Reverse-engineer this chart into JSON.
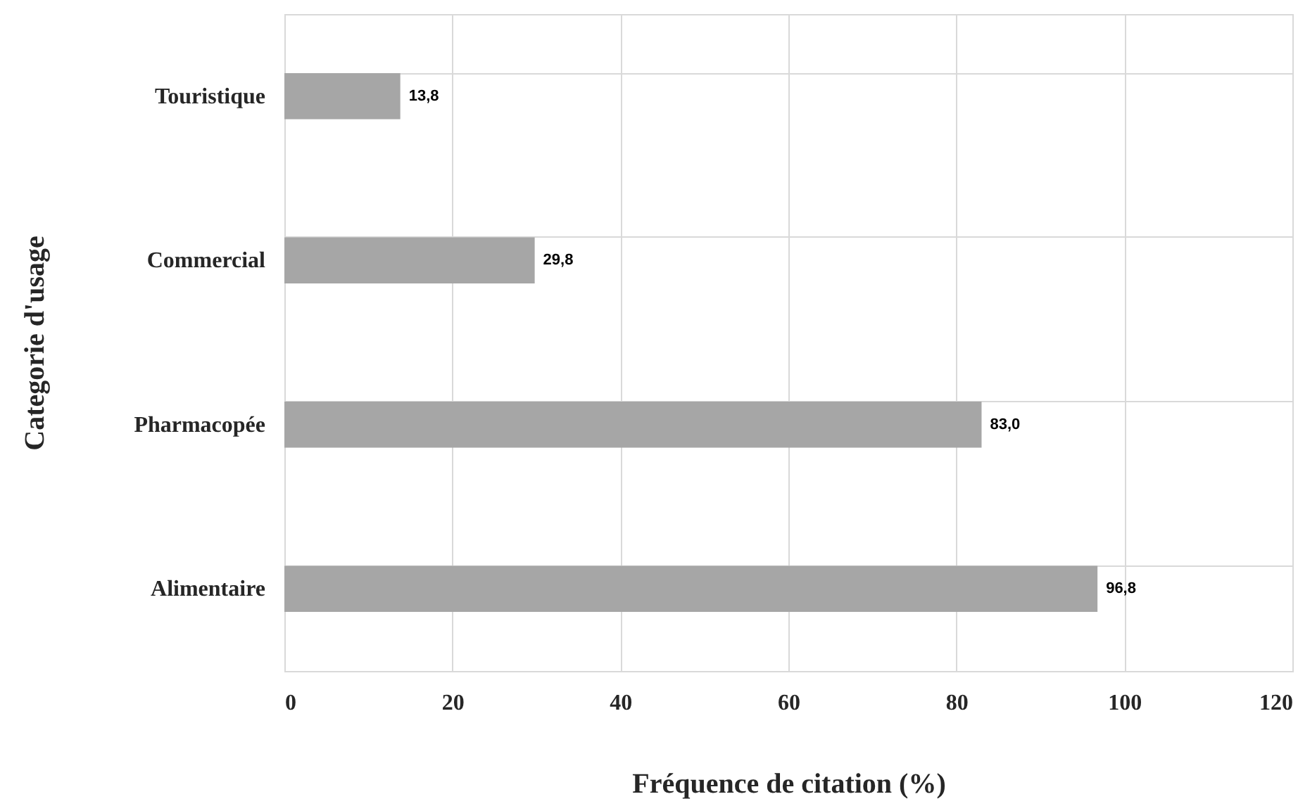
{
  "chart_data": {
    "type": "bar",
    "orientation": "horizontal",
    "xlabel": "Fréquence de citation (%)",
    "ylabel": "Categorie d'usage",
    "categories": [
      "Touristique",
      "Commercial",
      "Pharmacopée",
      "Alimentaire"
    ],
    "values": [
      13.8,
      29.8,
      83.0,
      96.8
    ],
    "value_labels": [
      "13,8",
      "29,8",
      "83,0",
      "96,8"
    ],
    "color": "#a6a6a6",
    "xlim": [
      0,
      120
    ],
    "xticks": [
      0,
      20,
      40,
      60,
      80,
      100,
      120
    ],
    "grid": true
  }
}
